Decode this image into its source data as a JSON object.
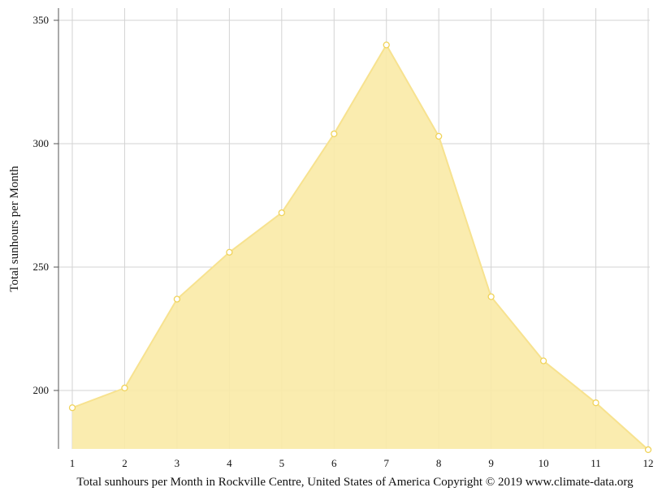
{
  "chart_data": {
    "type": "area",
    "title": "",
    "xlabel": "",
    "ylabel": "Total sunhours per Month",
    "caption": "Total sunhours per Month in Rockville Centre, United States of America Copyright © 2019 www.climate-data.org",
    "x": [
      "1",
      "2",
      "3",
      "4",
      "5",
      "6",
      "7",
      "8",
      "9",
      "10",
      "11",
      "12"
    ],
    "y_ticks": [
      "200",
      "250",
      "300",
      "350"
    ],
    "ylim": [
      176,
      355
    ],
    "grid": true,
    "series": [
      {
        "values": [
          193,
          201,
          237,
          256,
          272,
          304,
          340,
          303,
          238,
          212,
          195,
          176
        ]
      }
    ],
    "colors": {
      "fill": "#f9eaa6",
      "line": "#f7e28f",
      "marker_stroke": "#f0d35a",
      "grid": "#d3d3d3",
      "axis": "#555555"
    }
  }
}
